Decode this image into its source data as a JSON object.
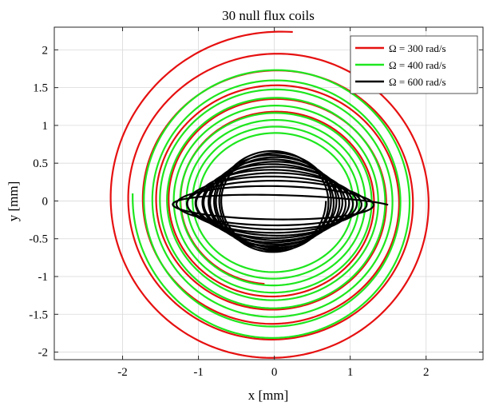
{
  "chart_data": {
    "type": "line",
    "title": "30 null flux coils",
    "xlabel": "x [mm]",
    "ylabel": "y [mm]",
    "xlim": [
      -2.9,
      2.75
    ],
    "ylim": [
      -2.1,
      2.3
    ],
    "xticks": [
      -2,
      -1,
      0,
      1,
      2
    ],
    "xtick_labels": [
      "-2",
      "-1",
      "0",
      "1",
      "2"
    ],
    "yticks": [
      -2,
      -1.5,
      -1,
      -0.5,
      0,
      0.5,
      1,
      1.5,
      2
    ],
    "ytick_labels": [
      "-2",
      "-1.5",
      "-1",
      "-0.5",
      "0",
      "0.5",
      "1",
      "1.5",
      "2"
    ],
    "grid": true,
    "legend_position": "top-right",
    "series": [
      {
        "name": "Ω = 300 rad/s",
        "color": "#e61010",
        "shape": "inward-spiral",
        "start_point": [
          0.25,
          2.3
        ],
        "end_point": [
          -1.2,
          0.0
        ],
        "outer_radius": 2.25,
        "inner_radius": 1.2,
        "turns": 5.5,
        "flatten": 0.08
      },
      {
        "name": "Ω = 400 rad/s",
        "color": "#1ee61e",
        "shape": "inward-spiral",
        "start_point": [
          -1.87,
          0.1
        ],
        "end_point": [
          -1.0,
          0.0
        ],
        "outer_radius": 1.87,
        "inner_radius": 1.0,
        "turns": 9,
        "flatten": 0.12
      },
      {
        "name": "Ω = 600 rad/s",
        "color": "#000000",
        "shape": "collapsing-ellipse",
        "start_point": [
          1.5,
          0.0
        ],
        "end_point": [
          0.0,
          0.68
        ],
        "outer_radius": 1.5,
        "inner_radius": 0.68,
        "turns": 14,
        "flatten": 0.0
      }
    ]
  }
}
